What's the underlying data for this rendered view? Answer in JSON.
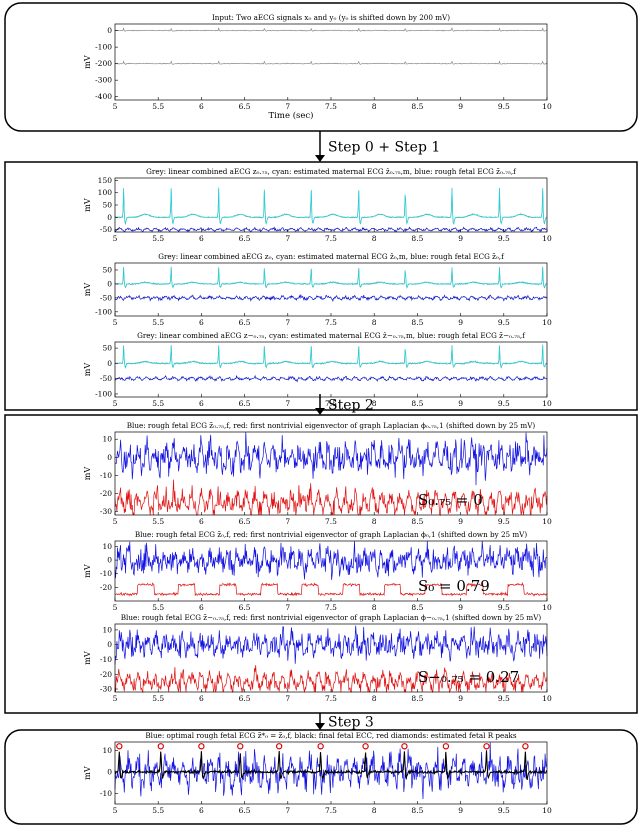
{
  "boxes": [
    {
      "id": "input",
      "panels": [
        {
          "title": "Input: Two aECG signals x₀ and y₀ (y₀ is shifted down by 200 mV)",
          "ylabel": "mV",
          "yticks": [
            "0",
            "-100",
            "-200",
            "-300",
            "-400"
          ],
          "ylim": [
            -420,
            40
          ],
          "xlabel": "Time (sec)",
          "series": [
            {
              "kind": "ecg",
              "color": "#8c8c8c",
              "offset": 0,
              "amp": 0.12
            },
            {
              "kind": "ecg",
              "color": "#8c8c8c",
              "offset": -200,
              "amp": 0.12
            }
          ]
        }
      ]
    },
    {
      "id": "step01",
      "panels": [
        {
          "title": "Grey: linear combined aECG z₀.₇₅, cyan: estimated maternal ECG ẑ₀.₇₅,m, blue: rough fetal ECG z̃₀.₇₅,f",
          "ylabel": "mV",
          "yticks": [
            "150",
            "100",
            "50",
            "0",
            "-50"
          ],
          "ylim": [
            -60,
            160
          ],
          "series": [
            {
              "kind": "ecg",
              "color": "#9a9a9a",
              "offset": 0,
              "amp": 1
            },
            {
              "kind": "ecg",
              "color": "#19d4dc",
              "offset": 0,
              "amp": 1
            },
            {
              "kind": "noise",
              "color": "#1010c8",
              "offset": -50,
              "amp": 4
            }
          ]
        },
        {
          "title": "Grey: linear combined aECG z₀, cyan: estimated maternal ECG ẑ₀,m, blue: rough fetal ECG z̃₀,f",
          "ylabel": "mV",
          "yticks": [
            "50",
            "0",
            "-50",
            "-100"
          ],
          "ylim": [
            -115,
            75
          ],
          "series": [
            {
              "kind": "ecg",
              "color": "#9a9a9a",
              "offset": 0,
              "amp": 0.5
            },
            {
              "kind": "ecg",
              "color": "#19d4dc",
              "offset": 0,
              "amp": 0.5
            },
            {
              "kind": "noise",
              "color": "#1010c8",
              "offset": -50,
              "amp": 5
            }
          ]
        },
        {
          "title": "Grey: linear combined aECG z−₀.₇₅, cyan: estimated maternal ECG ẑ−₀.₇₅,m, blue: rough fetal ECG z̃−₀.₇₅,f",
          "ylabel": "mV",
          "yticks": [
            "50",
            "0",
            "-50",
            "-100"
          ],
          "ylim": [
            -110,
            70
          ],
          "series": [
            {
              "kind": "ecg",
              "color": "#9a9a9a",
              "offset": 0,
              "amp": 0.5
            },
            {
              "kind": "ecg",
              "color": "#19d4dc",
              "offset": 0,
              "amp": 0.5
            },
            {
              "kind": "noise",
              "color": "#1010c8",
              "offset": -50,
              "amp": 4
            }
          ]
        }
      ]
    },
    {
      "id": "step2",
      "panels": [
        {
          "title": "Blue: rough fetal ECG z̃₀.₇₅,f, red: first nontrivial eigenvector of graph Laplacian ϕ₀.₇₅,1 (shifted down by 25 mV)",
          "ylabel": "mV",
          "yticks": [
            "10",
            "0",
            "-10",
            "-20",
            "-30"
          ],
          "ylim": [
            -32,
            14
          ],
          "annotation": "S₀.₇₅ = 0",
          "series": [
            {
              "kind": "noise",
              "color": "#1010e0",
              "offset": 0,
              "amp": 7
            },
            {
              "kind": "noise",
              "color": "#e01010",
              "offset": -25,
              "amp": 5
            }
          ]
        },
        {
          "title": "Blue: rough fetal ECG z̃₀,f, red: first nontrivial eigenvector of graph Laplacian ϕ₀,1 (shifted down by 25 mV)",
          "ylabel": "mV",
          "yticks": [
            "10",
            "0",
            "-10",
            "-20"
          ],
          "ylim": [
            -30,
            14
          ],
          "annotation": "S₀ = 0.79",
          "series": [
            {
              "kind": "noise",
              "color": "#1010e0",
              "offset": 0,
              "amp": 8
            },
            {
              "kind": "square",
              "color": "#e01010",
              "offset": -25,
              "amp": 7
            }
          ]
        },
        {
          "title": "Blue: rough fetal ECG z̃−₀.₇₅,f, red: first nontrivial eigenvector of graph Laplacian ϕ−₀.₇₅,1 (shifted down by 25 mV)",
          "ylabel": "mV",
          "yticks": [
            "10",
            "0",
            "-10",
            "-20",
            "-30"
          ],
          "ylim": [
            -32,
            14
          ],
          "annotation": "S−₀.₇₅ = 0.27",
          "series": [
            {
              "kind": "noise",
              "color": "#1010e0",
              "offset": 0,
              "amp": 7
            },
            {
              "kind": "noise",
              "color": "#e01010",
              "offset": -25,
              "amp": 5
            }
          ]
        }
      ]
    },
    {
      "id": "step3",
      "panels": [
        {
          "title": "Blue: optimal rough fetal ECG z̃*₀ = z̃₀,f, black: final fetal ECC, red diamonds: estimated fetal R peaks",
          "ylabel": "mV",
          "yticks": [
            "10",
            "0",
            "-10"
          ],
          "ylim": [
            -15,
            14
          ],
          "series": [
            {
              "kind": "noise",
              "color": "#1010e0",
              "offset": 0,
              "amp": 6
            },
            {
              "kind": "fetal",
              "color": "#000000",
              "offset": 0,
              "amp": 1
            }
          ],
          "peaks": [
            5.05,
            5.53,
            6.0,
            6.45,
            6.9,
            7.38,
            7.9,
            8.35,
            8.83,
            9.3,
            9.75
          ]
        }
      ]
    }
  ],
  "xticks": [
    "5",
    "5.5",
    "6",
    "6.5",
    "7",
    "7.5",
    "8",
    "8.5",
    "9",
    "9.5",
    "10"
  ],
  "xlim": [
    5,
    10
  ],
  "maternal_beats": [
    5.1,
    5.65,
    6.2,
    6.73,
    7.27,
    7.82,
    8.36,
    8.9,
    9.45,
    9.95
  ],
  "steps": [
    "Step 0 + Step 1",
    "Step 2",
    "Step 3"
  ],
  "colors": {
    "frame": "#000000",
    "axis": "#000000"
  }
}
